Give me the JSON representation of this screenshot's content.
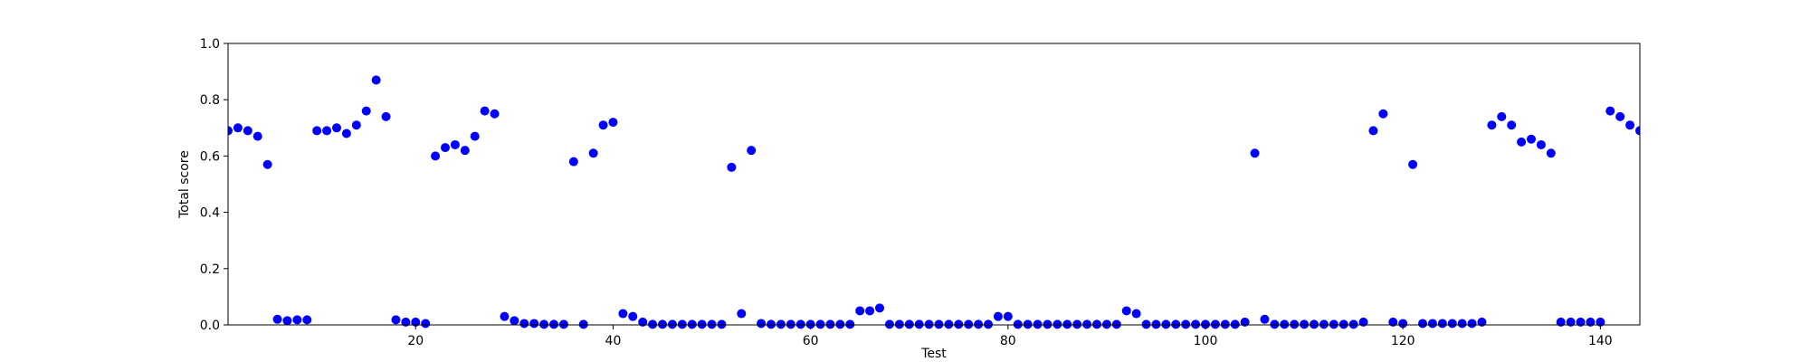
{
  "chart_data": {
    "type": "scatter",
    "title": "",
    "xlabel": "Test",
    "ylabel": "Total score",
    "xlim": [
      1,
      144
    ],
    "ylim": [
      0.0,
      1.0
    ],
    "x_ticks": [
      20,
      40,
      60,
      80,
      100,
      120,
      140
    ],
    "x_tick_labels": [
      "20",
      "40",
      "60",
      "80",
      "100",
      "120",
      "140"
    ],
    "y_ticks": [
      0.0,
      0.2,
      0.4,
      0.6,
      0.8,
      1.0
    ],
    "y_tick_labels": [
      "0.0",
      "0.2",
      "0.4",
      "0.6",
      "0.8",
      "1.0"
    ],
    "grid": false,
    "marker_color": "#0000ff",
    "series": [
      {
        "name": "",
        "x": [
          1,
          2,
          3,
          4,
          5,
          6,
          7,
          8,
          9,
          10,
          11,
          12,
          13,
          14,
          15,
          16,
          17,
          18,
          19,
          20,
          21,
          22,
          23,
          24,
          25,
          26,
          27,
          28,
          29,
          30,
          31,
          32,
          33,
          34,
          35,
          36,
          37,
          38,
          39,
          40,
          41,
          42,
          43,
          44,
          45,
          46,
          47,
          48,
          49,
          50,
          51,
          52,
          53,
          54,
          55,
          56,
          57,
          58,
          59,
          60,
          61,
          62,
          63,
          64,
          65,
          66,
          67,
          68,
          69,
          70,
          71,
          72,
          73,
          74,
          75,
          76,
          77,
          78,
          79,
          80,
          81,
          82,
          83,
          84,
          85,
          86,
          87,
          88,
          89,
          90,
          91,
          92,
          93,
          94,
          95,
          96,
          97,
          98,
          99,
          100,
          101,
          102,
          103,
          104,
          105,
          106,
          107,
          108,
          109,
          110,
          111,
          112,
          113,
          114,
          115,
          116,
          117,
          118,
          119,
          120,
          121,
          122,
          123,
          124,
          125,
          126,
          127,
          128,
          129,
          130,
          131,
          132,
          133,
          134,
          135,
          136,
          137,
          138,
          139,
          140,
          141,
          142,
          143,
          144
        ],
        "y": [
          0.69,
          0.7,
          0.69,
          0.67,
          0.57,
          0.02,
          0.015,
          0.018,
          0.018,
          0.69,
          0.69,
          0.7,
          0.68,
          0.71,
          0.76,
          0.87,
          0.74,
          0.018,
          0.01,
          0.01,
          0.005,
          0.6,
          0.63,
          0.64,
          0.62,
          0.67,
          0.76,
          0.75,
          0.03,
          0.015,
          0.005,
          0.005,
          0.002,
          0.002,
          0.002,
          0.58,
          0.002,
          0.61,
          0.71,
          0.72,
          0.04,
          0.03,
          0.01,
          0.002,
          0.002,
          0.002,
          0.002,
          0.002,
          0.002,
          0.002,
          0.002,
          0.56,
          0.04,
          0.62,
          0.005,
          0.002,
          0.002,
          0.002,
          0.002,
          0.002,
          0.002,
          0.002,
          0.002,
          0.002,
          0.05,
          0.05,
          0.06,
          0.002,
          0.002,
          0.002,
          0.002,
          0.002,
          0.002,
          0.002,
          0.002,
          0.002,
          0.002,
          0.002,
          0.03,
          0.03,
          0.002,
          0.002,
          0.002,
          0.002,
          0.002,
          0.002,
          0.002,
          0.002,
          0.002,
          0.002,
          0.002,
          0.05,
          0.04,
          0.002,
          0.002,
          0.002,
          0.002,
          0.002,
          0.002,
          0.002,
          0.002,
          0.002,
          0.002,
          0.01,
          0.61,
          0.02,
          0.002,
          0.002,
          0.002,
          0.002,
          0.002,
          0.002,
          0.002,
          0.002,
          0.002,
          0.01,
          0.69,
          0.75,
          0.01,
          0.005,
          0.57,
          0.005,
          0.005,
          0.005,
          0.005,
          0.005,
          0.005,
          0.01,
          0.71,
          0.74,
          0.71,
          0.65,
          0.66,
          0.64,
          0.61,
          0.01,
          0.01,
          0.01,
          0.01,
          0.01,
          0.76,
          0.74,
          0.71,
          0.69
        ]
      }
    ]
  }
}
